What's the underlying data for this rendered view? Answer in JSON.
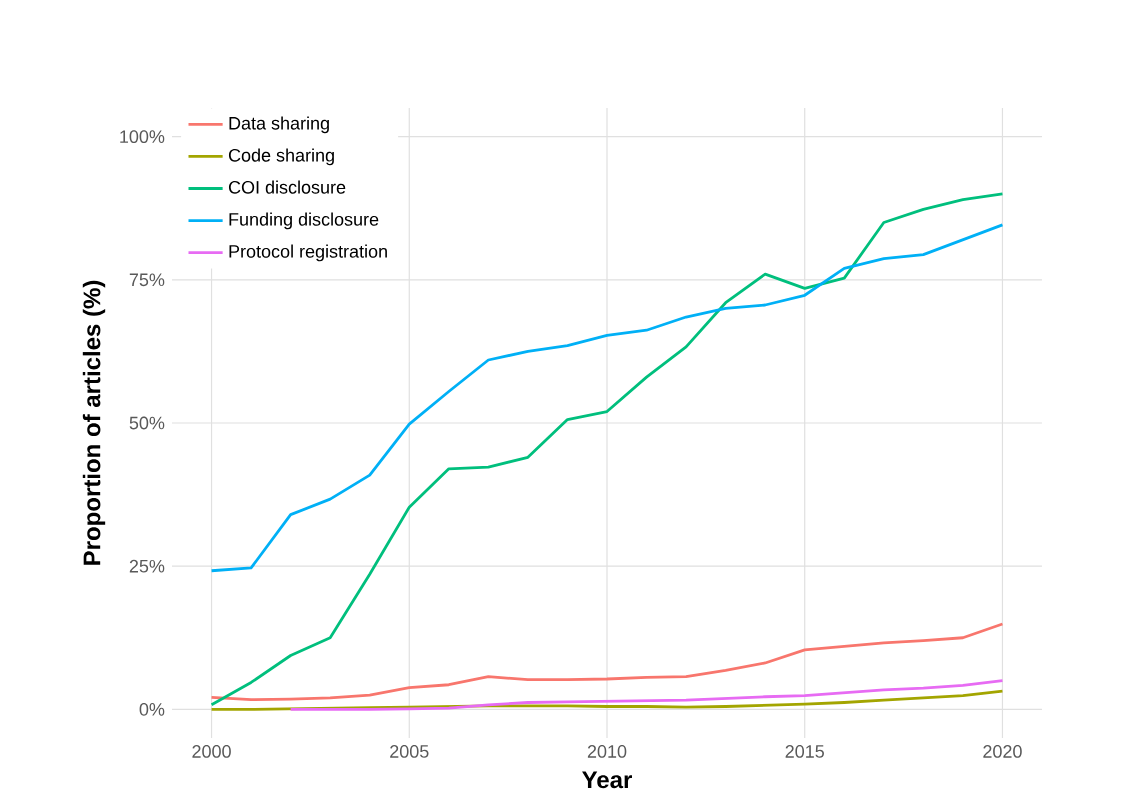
{
  "chart_data": {
    "type": "line",
    "xlabel": "Year",
    "ylabel": "Proportion of articles (%)",
    "x": [
      2000,
      2001,
      2002,
      2003,
      2004,
      2005,
      2006,
      2007,
      2008,
      2009,
      2010,
      2011,
      2012,
      2013,
      2014,
      2015,
      2016,
      2017,
      2018,
      2019,
      2020
    ],
    "series": [
      {
        "name": "Data sharing",
        "color": "#f8766d",
        "values": [
          2.1,
          1.7,
          1.8,
          2.0,
          2.5,
          3.8,
          4.3,
          5.7,
          5.2,
          5.2,
          5.3,
          5.6,
          5.7,
          6.8,
          8.1,
          10.4,
          11.0,
          11.6,
          12.0,
          12.5,
          14.9
        ]
      },
      {
        "name": "Code sharing",
        "color": "#a3a500",
        "values": [
          0,
          0,
          0.1,
          0.2,
          0.3,
          0.4,
          0.5,
          0.6,
          0.6,
          0.6,
          0.5,
          0.5,
          0.4,
          0.5,
          0.7,
          0.9,
          1.2,
          1.6,
          2.0,
          2.4,
          3.2
        ]
      },
      {
        "name": "COI disclosure",
        "color": "#00bf7d",
        "values": [
          0.8,
          4.7,
          9.4,
          12.5,
          23.6,
          35.3,
          42.0,
          42.3,
          44.0,
          50.6,
          52.0,
          58.0,
          63.3,
          71.0,
          76.0,
          73.5,
          75.3,
          85.0,
          87.3,
          89.0,
          90.0
        ]
      },
      {
        "name": "Funding disclosure",
        "color": "#00b0f6",
        "values": [
          24.2,
          24.7,
          34.0,
          36.7,
          40.9,
          49.8,
          55.5,
          61.0,
          62.5,
          63.5,
          65.3,
          66.2,
          68.5,
          70.0,
          70.6,
          72.3,
          77.0,
          78.7,
          79.4,
          82.0,
          84.6
        ]
      },
      {
        "name": "Protocol registration",
        "color": "#e76bf3",
        "values": [
          null,
          null,
          0,
          0,
          0,
          0.1,
          0.2,
          0.8,
          1.2,
          1.3,
          1.4,
          1.5,
          1.6,
          1.9,
          2.2,
          2.4,
          2.9,
          3.4,
          3.7,
          4.2,
          5.0
        ]
      }
    ],
    "xlim": [
      1999,
      2021
    ],
    "ylim": [
      -5,
      105
    ],
    "xticks": [
      2000,
      2005,
      2010,
      2015,
      2020
    ],
    "yticks": [
      {
        "value": 0,
        "label": "0%"
      },
      {
        "value": 25,
        "label": "25%"
      },
      {
        "value": 50,
        "label": "50%"
      },
      {
        "value": 75,
        "label": "75%"
      },
      {
        "value": 100,
        "label": "100%"
      }
    ],
    "grid": true,
    "legend": "top left",
    "line_style": "solid",
    "marker": "none"
  }
}
